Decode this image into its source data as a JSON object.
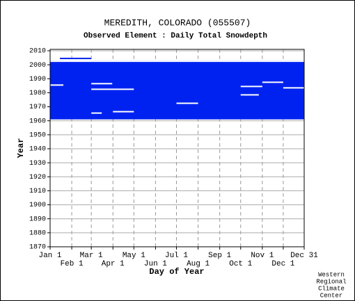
{
  "chart_data": {
    "type": "coverage",
    "title": "MEREDITH, COLORADO   (055507)",
    "subtitle": "Observed Element : Daily Total Snowdepth",
    "xlabel": "Day of Year",
    "ylabel": "Year",
    "xlim": [
      1,
      365
    ],
    "ylim": [
      1870,
      2011
    ],
    "xticks": [
      {
        "value": 1,
        "label": "Jan 1"
      },
      {
        "value": 32,
        "label": "Feb 1"
      },
      {
        "value": 60,
        "label": "Mar 1"
      },
      {
        "value": 91,
        "label": "Apr 1"
      },
      {
        "value": 121,
        "label": "May 1"
      },
      {
        "value": 152,
        "label": "Jun 1"
      },
      {
        "value": 182,
        "label": "Jul 1"
      },
      {
        "value": 213,
        "label": "Aug 1"
      },
      {
        "value": 244,
        "label": "Sep 1"
      },
      {
        "value": 274,
        "label": "Oct 1"
      },
      {
        "value": 305,
        "label": "Nov 1"
      },
      {
        "value": 335,
        "label": "Dec 1"
      },
      {
        "value": 365,
        "label": "Dec 31"
      }
    ],
    "yticks": [
      1870,
      1880,
      1890,
      1900,
      1910,
      1920,
      1930,
      1940,
      1950,
      1960,
      1970,
      1980,
      1990,
      2000,
      2010
    ],
    "color": "#0022f0",
    "present": [
      {
        "days": [
          1,
          365
        ],
        "years": [
          1961,
          2002
        ]
      },
      {
        "days": [
          15,
          60
        ],
        "years": [
          2004,
          2004
        ]
      }
    ],
    "missing": [
      {
        "days": [
          1,
          20
        ],
        "years": [
          1985,
          1985
        ]
      },
      {
        "days": [
          60,
          90
        ],
        "years": [
          1986,
          1986
        ]
      },
      {
        "days": [
          60,
          121
        ],
        "years": [
          1982,
          1982
        ]
      },
      {
        "days": [
          182,
          213
        ],
        "years": [
          1972,
          1972
        ]
      },
      {
        "days": [
          274,
          305
        ],
        "years": [
          1984,
          1984
        ]
      },
      {
        "days": [
          305,
          335
        ],
        "years": [
          1987,
          1987
        ]
      },
      {
        "days": [
          335,
          365
        ],
        "years": [
          1983,
          1983
        ]
      },
      {
        "days": [
          274,
          300
        ],
        "years": [
          1978,
          1978
        ]
      },
      {
        "days": [
          60,
          75
        ],
        "years": [
          1965,
          1965
        ]
      },
      {
        "days": [
          91,
          121
        ],
        "years": [
          1966,
          1966
        ]
      },
      {
        "days": [
          1,
          365
        ],
        "years": [
          2002,
          2002
        ]
      }
    ]
  },
  "footer": [
    "Western",
    "Regional",
    "Climate",
    "Center"
  ]
}
